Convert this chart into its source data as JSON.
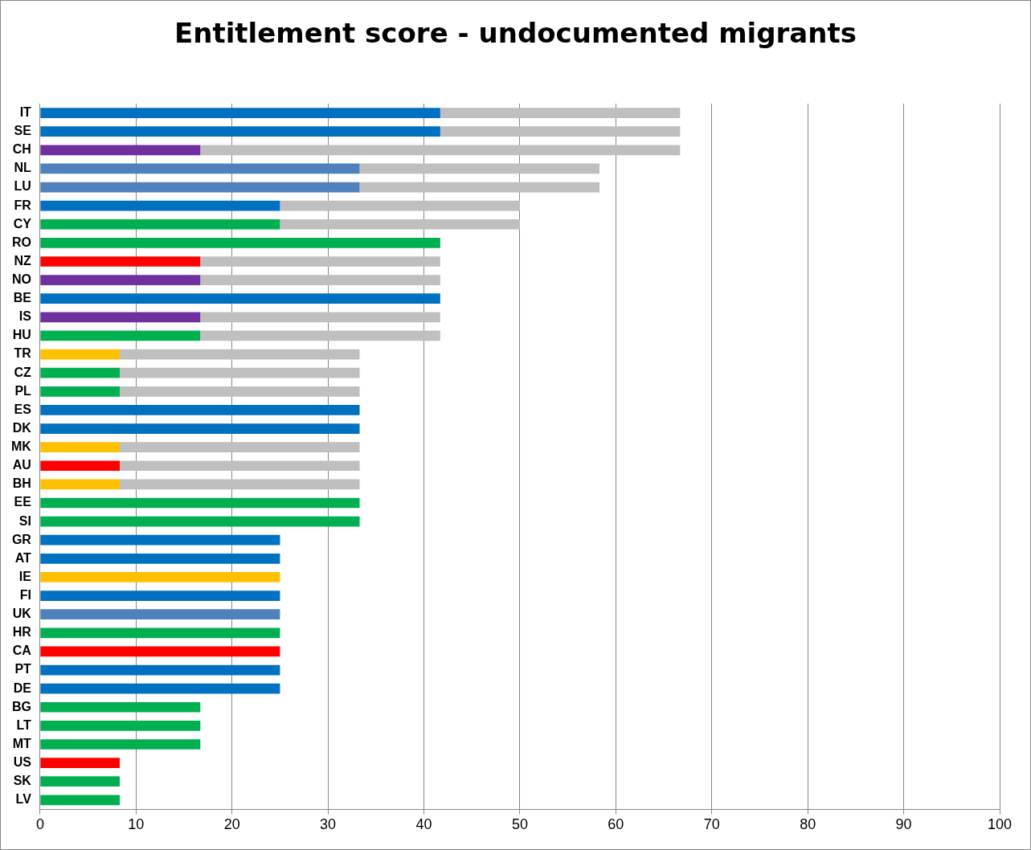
{
  "chart_data": {
    "type": "bar",
    "orientation": "horizontal",
    "stacked": true,
    "title": "Entitlement score - undocumented migrants",
    "categories": [
      "IT",
      "SE",
      "CH",
      "NL",
      "LU",
      "FR",
      "CY",
      "RO",
      "NZ",
      "NO",
      "BE",
      "IS",
      "HU",
      "TR",
      "CZ",
      "PL",
      "ES",
      "DK",
      "MK",
      "AU",
      "BH",
      "EE",
      "SI",
      "GR",
      "AT",
      "IE",
      "FI",
      "UK",
      "HR",
      "CA",
      "PT",
      "DE",
      "BG",
      "LT",
      "MT",
      "US",
      "SK",
      "LV"
    ],
    "series": [
      {
        "values": [
          41.7,
          41.7,
          16.7,
          33.3,
          33.3,
          25,
          25,
          41.7,
          16.7,
          16.7,
          41.7,
          16.7,
          16.7,
          8.3,
          8.3,
          8.3,
          33.3,
          33.3,
          8.3,
          8.3,
          8.3,
          33.3,
          33.3,
          25,
          25,
          25,
          25,
          25,
          25,
          25,
          25,
          25,
          16.7,
          16.7,
          16.7,
          8.3,
          8.3,
          8.3
        ],
        "colors": [
          "#0070c0",
          "#0070c0",
          "#7030a0",
          "#4f81bd",
          "#4f81bd",
          "#0070c0",
          "#00b050",
          "#00b050",
          "#ff0000",
          "#7030a0",
          "#0070c0",
          "#7030a0",
          "#00b050",
          "#ffc000",
          "#00b050",
          "#00b050",
          "#0070c0",
          "#0070c0",
          "#ffc000",
          "#ff0000",
          "#ffc000",
          "#00b050",
          "#00b050",
          "#0070c0",
          "#0070c0",
          "#ffc000",
          "#0070c0",
          "#4f81bd",
          "#00b050",
          "#ff0000",
          "#0070c0",
          "#0070c0",
          "#00b050",
          "#00b050",
          "#00b050",
          "#ff0000",
          "#00b050",
          "#00b050"
        ]
      },
      {
        "color": "#bfbfbf",
        "values": [
          25,
          25,
          50,
          25,
          25,
          25,
          25,
          null,
          25,
          25,
          null,
          25,
          25,
          25,
          25,
          25,
          null,
          null,
          25,
          25,
          25,
          null,
          null,
          null,
          null,
          null,
          null,
          null,
          null,
          null,
          null,
          null,
          null,
          null,
          null,
          null,
          null,
          null
        ]
      }
    ],
    "xlim": [
      0,
      100
    ],
    "xticks": [
      0,
      10,
      20,
      30,
      40,
      50,
      60,
      70,
      80,
      90,
      100
    ],
    "grid": "x",
    "legend": false
  }
}
